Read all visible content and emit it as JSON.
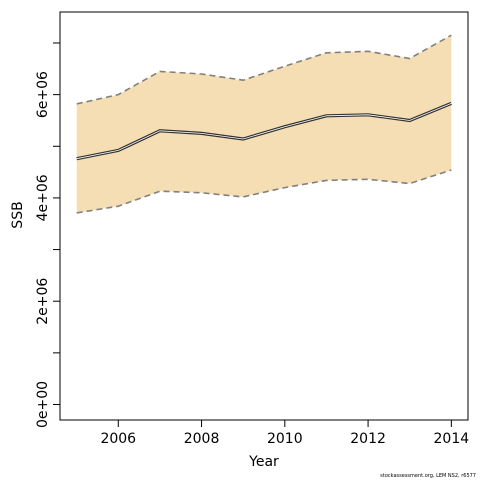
{
  "chart_data": {
    "type": "area",
    "xlabel": "Year",
    "ylabel": "SSB",
    "xlim": [
      2004.6,
      2014.4
    ],
    "ylim": [
      -300000,
      7600000
    ],
    "x_ticks": [
      2006,
      2008,
      2010,
      2012,
      2014
    ],
    "x_tick_labels": [
      "2006",
      "2008",
      "2010",
      "2012",
      "2014"
    ],
    "y_ticks": [
      0,
      1000000,
      2000000,
      3000000,
      4000000,
      5000000,
      6000000,
      7000000
    ],
    "y_labeled_ticks": [
      0,
      2000000,
      4000000,
      6000000
    ],
    "y_tick_labels": [
      "0e+00",
      "2e+06",
      "4e+06",
      "6e+06"
    ],
    "x": [
      2005,
      2006,
      2007,
      2008,
      2009,
      2010,
      2011,
      2012,
      2013,
      2014
    ],
    "series": [
      {
        "role": "estimate",
        "values": [
          4760000,
          4920000,
          5300000,
          5250000,
          5140000,
          5380000,
          5590000,
          5610000,
          5500000,
          5830000
        ]
      },
      {
        "role": "upper",
        "values": [
          5820000,
          6000000,
          6450000,
          6400000,
          6280000,
          6550000,
          6810000,
          6840000,
          6700000,
          7150000
        ]
      },
      {
        "role": "lower",
        "values": [
          3710000,
          3840000,
          4130000,
          4100000,
          4020000,
          4200000,
          4340000,
          4360000,
          4280000,
          4540000
        ]
      }
    ],
    "colors": {
      "band": "#f5deb3",
      "line": "#333333",
      "bound": "#808080",
      "axis": "#000000"
    },
    "grid": false,
    "legend": "none"
  },
  "footer": "stockassessment.org, LEM NS2, r6577"
}
